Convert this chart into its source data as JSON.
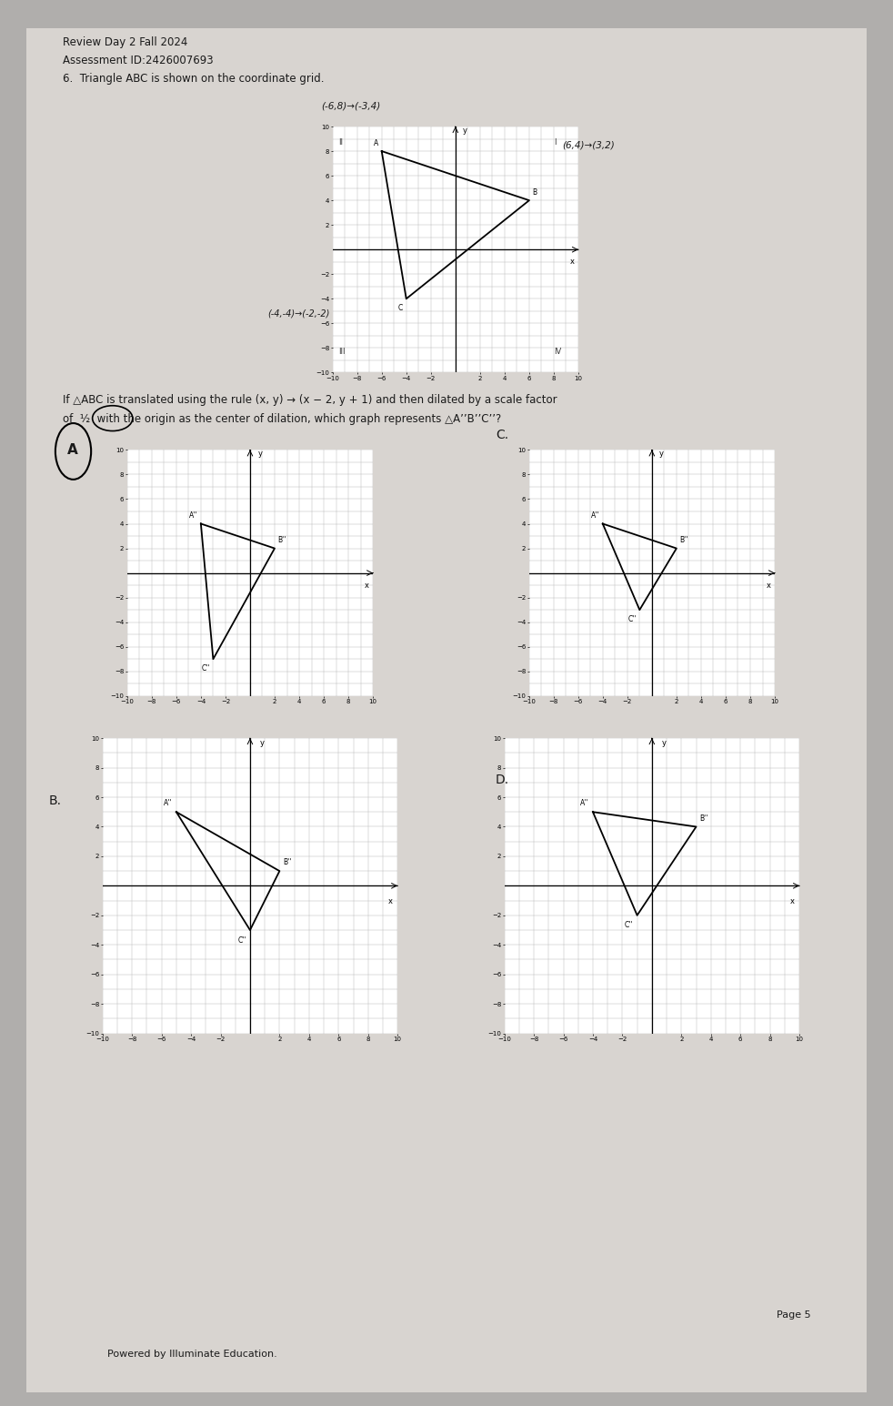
{
  "bg_color": "#b0aeac",
  "paper_color": "#d8d4d0",
  "header_line1": "Review Day 2 Fall 2024",
  "header_line2": "Assessment ID:2426007693",
  "question_text": "6.  Triangle ABC is shown on the coordinate grid.",
  "transform_line1": "If △ABC is translated using the rule (x, y) → (x − 2, y + 1) and then dilated by a scale factor",
  "transform_line2": "of  ½  with the origin as the center of dilation, which graph represents △A’’B’’C’’?",
  "page_text": "Page 5",
  "footer_text": "Powered by Illuminate Education.",
  "orig_triangle": {
    "A": [
      -6,
      8
    ],
    "B": [
      6,
      4
    ],
    "C": [
      -4,
      -4
    ]
  },
  "graph_A": {
    "label": "A",
    "A2": [
      -4,
      4
    ],
    "B2": [
      2,
      2
    ],
    "C2": [
      -3,
      -7
    ]
  },
  "graph_C": {
    "label": "C",
    "A2": [
      -4,
      4
    ],
    "B2": [
      2,
      2
    ],
    "C2": [
      -1,
      -3
    ]
  },
  "graph_B": {
    "label": "B",
    "A2": [
      -5,
      5
    ],
    "B2": [
      2,
      1
    ],
    "C2": [
      0,
      -3
    ]
  },
  "graph_D": {
    "label": "D",
    "A2": [
      -4,
      5
    ],
    "B2": [
      3,
      4
    ],
    "C2": [
      -1,
      -2
    ]
  }
}
